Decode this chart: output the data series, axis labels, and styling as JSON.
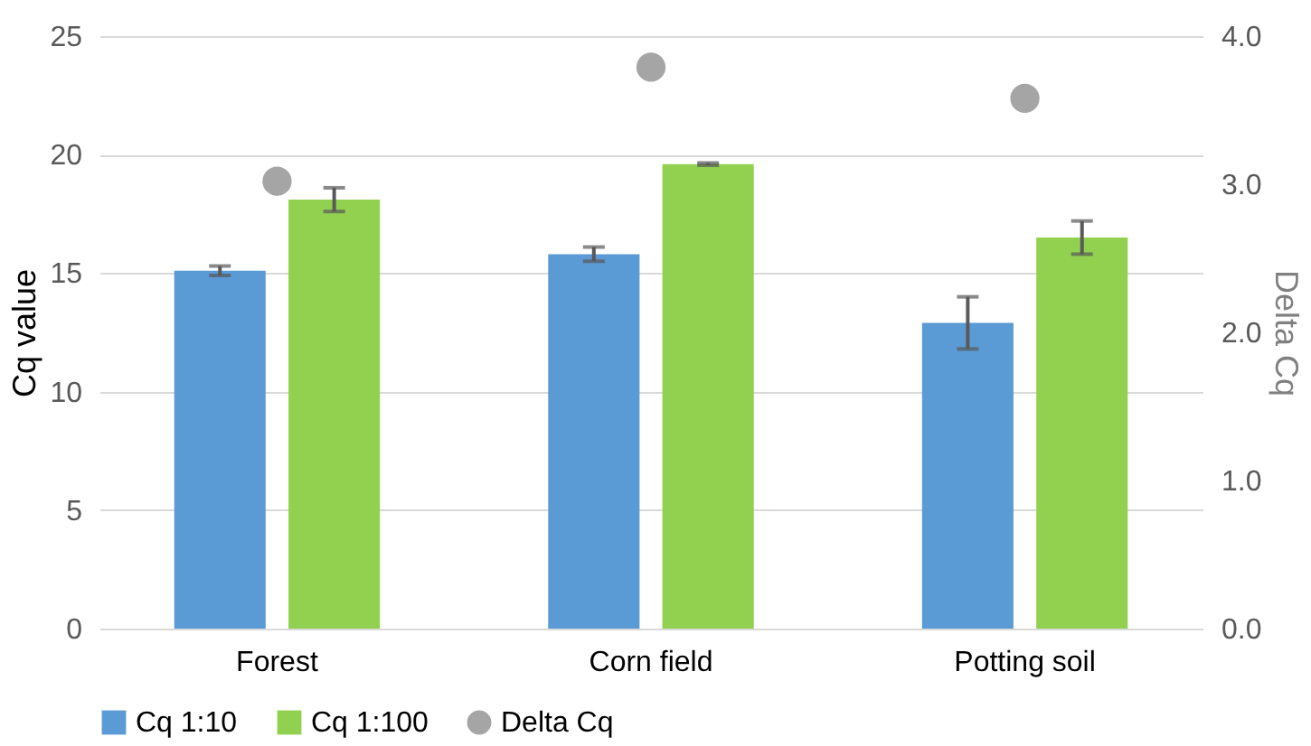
{
  "chart_data": {
    "type": "bar",
    "categories": [
      "Forest",
      "Corn field",
      "Potting soil"
    ],
    "ylabel": "Cq value",
    "y2label": "Delta Cq",
    "ylim": [
      0,
      25
    ],
    "yticks": [
      0,
      5,
      10,
      15,
      20,
      25
    ],
    "y2lim": [
      0,
      4
    ],
    "y2ticks": [
      {
        "value": 0,
        "label": "0.0"
      },
      {
        "value": 1,
        "label": "1.0"
      },
      {
        "value": 2,
        "label": "2.0"
      },
      {
        "value": 3,
        "label": "3.0"
      },
      {
        "value": 4,
        "label": "4.0"
      }
    ],
    "grid": "y",
    "legend": "bottom",
    "series": [
      {
        "name": "Cq 1:10",
        "type": "bar",
        "color": "#5b9bd5",
        "values": [
          15.1,
          15.8,
          12.9
        ],
        "errors": [
          0.2,
          0.3,
          1.1
        ]
      },
      {
        "name": "Cq 1:100",
        "type": "bar",
        "color": "#92d050",
        "values": [
          18.1,
          19.6,
          16.5
        ],
        "errors": [
          0.5,
          0.05,
          0.7
        ]
      },
      {
        "name": "Delta Cq",
        "type": "scatter",
        "axis": "y2",
        "marker": "circle",
        "color": "#a5a5a5",
        "values": [
          3.02,
          3.79,
          3.58
        ]
      }
    ]
  }
}
